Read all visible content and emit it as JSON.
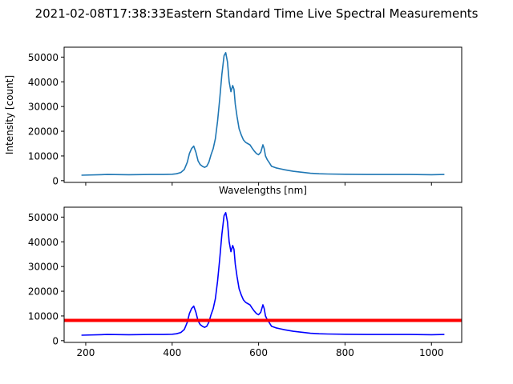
{
  "figure": {
    "title": "2021-02-08T17:38:33Eastern Standard Time Live Spectral Measurements"
  },
  "chart_data": [
    {
      "type": "line",
      "xlabel": "Wavelengths [nm]",
      "ylabel": "Intensity [count]",
      "xlim": [
        150,
        1070
      ],
      "ylim": [
        -700,
        54000
      ],
      "xticks": [
        200,
        400,
        600,
        800,
        1000
      ],
      "show_xtick_labels": false,
      "yticks": [
        0,
        10000,
        20000,
        30000,
        40000,
        50000
      ],
      "ytick_labels": [
        "0",
        "10000",
        "20000",
        "30000",
        "40000",
        "50000"
      ],
      "grid": false,
      "series": [
        {
          "color": "#1f77b4",
          "x": [
            190,
            250,
            300,
            350,
            380,
            400,
            410,
            420,
            428,
            435,
            440,
            445,
            450,
            455,
            460,
            465,
            470,
            475,
            480,
            485,
            490,
            495,
            500,
            505,
            510,
            515,
            520,
            524,
            528,
            532,
            536,
            540,
            543,
            546,
            550,
            555,
            560,
            565,
            570,
            575,
            580,
            585,
            590,
            595,
            600,
            605,
            610,
            613,
            616,
            620,
            625,
            630,
            640,
            650,
            660,
            680,
            700,
            720,
            740,
            760,
            800,
            850,
            900,
            950,
            1000,
            1030
          ],
          "y": [
            2200,
            2500,
            2400,
            2500,
            2500,
            2600,
            2800,
            3300,
            4500,
            7500,
            11000,
            13000,
            14000,
            11500,
            8000,
            6500,
            5800,
            5400,
            5800,
            7500,
            10500,
            13000,
            17000,
            24000,
            33000,
            43000,
            50500,
            51800,
            48000,
            40000,
            36000,
            38500,
            37000,
            31000,
            26000,
            21000,
            18500,
            16500,
            15500,
            15000,
            14500,
            13200,
            12000,
            11000,
            10500,
            11500,
            14500,
            13000,
            10000,
            8500,
            7200,
            5800,
            5200,
            4800,
            4400,
            3800,
            3400,
            3000,
            2800,
            2700,
            2600,
            2500,
            2500,
            2500,
            2400,
            2500
          ]
        }
      ]
    },
    {
      "type": "line",
      "xlabel": "",
      "ylabel": "",
      "xlim": [
        150,
        1070
      ],
      "ylim": [
        -700,
        54000
      ],
      "xticks": [
        200,
        400,
        600,
        800,
        1000
      ],
      "xtick_labels": [
        "200",
        "400",
        "600",
        "800",
        "1000"
      ],
      "yticks": [
        0,
        10000,
        20000,
        30000,
        40000,
        50000
      ],
      "ytick_labels": [
        "0",
        "10000",
        "20000",
        "30000",
        "40000",
        "50000"
      ],
      "grid": false,
      "series": [
        {
          "color": "#0000ff",
          "x": [
            190,
            250,
            300,
            350,
            380,
            400,
            410,
            420,
            428,
            435,
            440,
            445,
            450,
            455,
            460,
            465,
            470,
            475,
            480,
            485,
            490,
            495,
            500,
            505,
            510,
            515,
            520,
            524,
            528,
            532,
            536,
            540,
            543,
            546,
            550,
            555,
            560,
            565,
            570,
            575,
            580,
            585,
            590,
            595,
            600,
            605,
            610,
            613,
            616,
            620,
            625,
            630,
            640,
            650,
            660,
            680,
            700,
            720,
            740,
            760,
            800,
            850,
            900,
            950,
            1000,
            1030
          ],
          "y": [
            2200,
            2500,
            2400,
            2500,
            2500,
            2600,
            2800,
            3300,
            4500,
            7500,
            11000,
            13000,
            14000,
            11500,
            8000,
            6500,
            5800,
            5400,
            5800,
            7500,
            10500,
            13000,
            17000,
            24000,
            33000,
            43000,
            50500,
            51800,
            48000,
            40000,
            36000,
            38500,
            37000,
            31000,
            26000,
            21000,
            18500,
            16500,
            15500,
            15000,
            14500,
            13200,
            12000,
            11000,
            10500,
            11500,
            14500,
            13000,
            10000,
            8500,
            7200,
            5800,
            5200,
            4800,
            4400,
            3800,
            3400,
            3000,
            2800,
            2700,
            2600,
            2500,
            2500,
            2500,
            2400,
            2500
          ]
        }
      ],
      "threshold": {
        "y": 8200,
        "color": "#ff0000"
      }
    }
  ]
}
